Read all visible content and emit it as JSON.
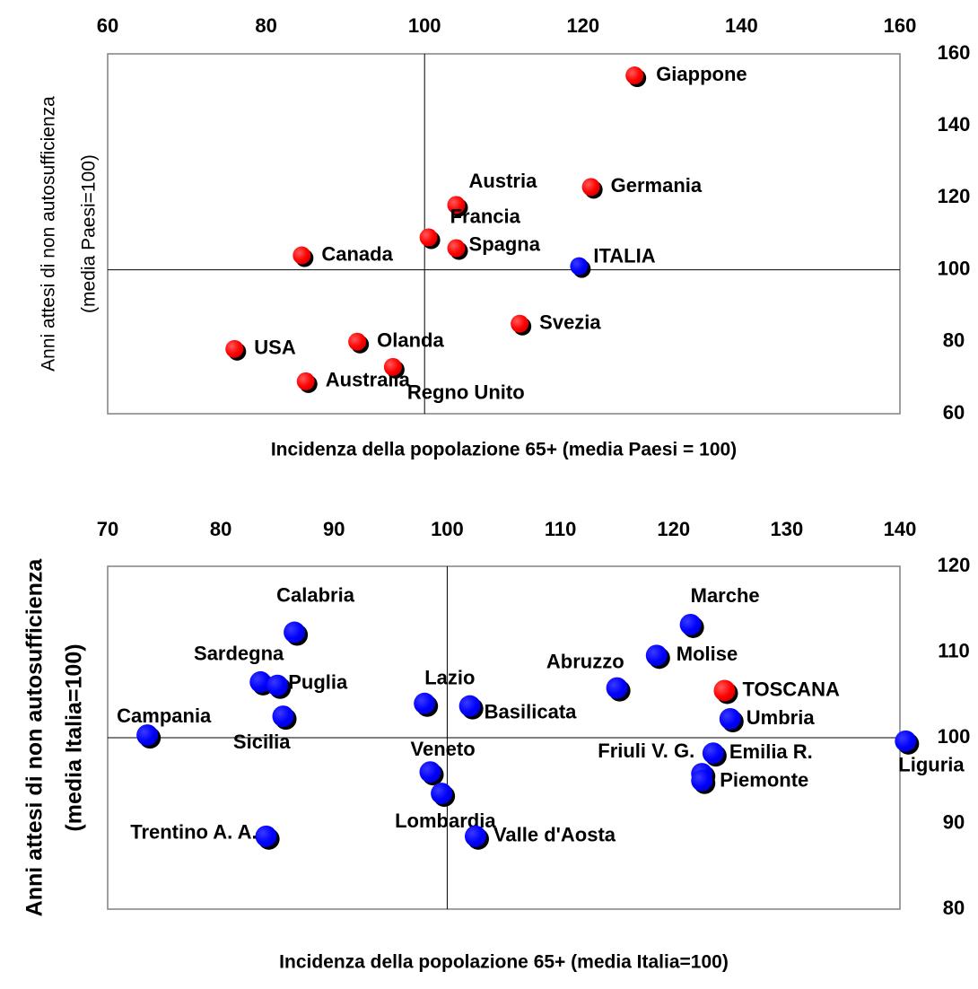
{
  "chart_data": [
    {
      "type": "scatter",
      "title": "",
      "xlabel": "Incidenza della popolazione 65+ (media Paesi = 100)",
      "ylabel_lines": [
        "Anni attesi di non autosufficienza",
        "(media Paesi=100)"
      ],
      "xlim": [
        60,
        160
      ],
      "ylim": [
        60,
        160
      ],
      "xticks": [
        60,
        80,
        100,
        120,
        140,
        160
      ],
      "yticks": [
        60,
        80,
        100,
        120,
        140,
        160
      ],
      "reference_lines": {
        "x": 100,
        "y": 100
      },
      "colors": {
        "highlight": "#0000ff",
        "default": "#ff0000"
      },
      "points": [
        {
          "label": "Giappone",
          "x": 126.5,
          "y": 154,
          "color": "red"
        },
        {
          "label": "Austria",
          "x": 104,
          "y": 118,
          "color": "red"
        },
        {
          "label": "Germania",
          "x": 121,
          "y": 123,
          "color": "red"
        },
        {
          "label": "Francia",
          "x": 100.5,
          "y": 109,
          "color": "red"
        },
        {
          "label": "Spagna",
          "x": 104,
          "y": 106,
          "color": "red"
        },
        {
          "label": "Canada",
          "x": 84.5,
          "y": 104,
          "color": "red"
        },
        {
          "label": "ITALIA",
          "x": 119.5,
          "y": 101,
          "color": "blue"
        },
        {
          "label": "Svezia",
          "x": 112,
          "y": 85,
          "color": "red"
        },
        {
          "label": "Olanda",
          "x": 91.5,
          "y": 80,
          "color": "red"
        },
        {
          "label": "USA",
          "x": 76,
          "y": 78,
          "color": "red"
        },
        {
          "label": "Australia",
          "x": 85,
          "y": 69,
          "color": "red"
        },
        {
          "label": "Regno Unito",
          "x": 96,
          "y": 73,
          "color": "red"
        }
      ]
    },
    {
      "type": "scatter",
      "title": "",
      "xlabel": "Incidenza della popolazione 65+ (media Italia=100)",
      "ylabel_lines": [
        "Anni attesi di non autosufficienza",
        "(media Italia=100)"
      ],
      "xlim": [
        70,
        140
      ],
      "ylim": [
        80,
        120
      ],
      "xticks": [
        70,
        80,
        90,
        100,
        110,
        120,
        130,
        140
      ],
      "yticks": [
        80,
        90,
        100,
        110,
        120
      ],
      "reference_lines": {
        "x": 100,
        "y": 100
      },
      "colors": {
        "highlight": "#ff0000",
        "default": "#0000ff"
      },
      "points": [
        {
          "label": "Calabria",
          "x": 86.5,
          "y": 112.3,
          "color": "blue"
        },
        {
          "label": "Marche",
          "x": 121.5,
          "y": 113.2,
          "color": "blue"
        },
        {
          "label": "Molise",
          "x": 118.5,
          "y": 109.6,
          "color": "blue"
        },
        {
          "label": "Sardegna",
          "x": 83.5,
          "y": 106.5,
          "color": "blue"
        },
        {
          "label": "Puglia",
          "x": 85,
          "y": 106.1,
          "color": "blue"
        },
        {
          "label": "Abruzzo",
          "x": 115,
          "y": 105.8,
          "color": "blue"
        },
        {
          "label": "TOSCANA",
          "x": 124.5,
          "y": 105.5,
          "color": "red"
        },
        {
          "label": "Lazio",
          "x": 98,
          "y": 104,
          "color": "blue"
        },
        {
          "label": "Basilicata",
          "x": 102,
          "y": 103.7,
          "color": "blue"
        },
        {
          "label": "Sicilia",
          "x": 85.5,
          "y": 102.5,
          "color": "blue"
        },
        {
          "label": "Umbria",
          "x": 125,
          "y": 102.2,
          "color": "blue"
        },
        {
          "label": "Campania",
          "x": 73.5,
          "y": 100.3,
          "color": "blue"
        },
        {
          "label": "Liguria",
          "x": 140.5,
          "y": 99.6,
          "color": "blue"
        },
        {
          "label": "Emilia R.",
          "x": 123.5,
          "y": 98.2,
          "color": "blue"
        },
        {
          "label": "Friuli V. G.",
          "x": 122.5,
          "y": 95.8,
          "color": "blue"
        },
        {
          "label": "Piemonte",
          "x": 122.5,
          "y": 95,
          "color": "blue"
        },
        {
          "label": "Veneto",
          "x": 98.5,
          "y": 96,
          "color": "blue"
        },
        {
          "label": "Lombardia",
          "x": 99.5,
          "y": 93.5,
          "color": "blue"
        },
        {
          "label": "Trentino A. A.",
          "x": 84,
          "y": 88.5,
          "color": "blue"
        },
        {
          "label": "Valle d'Aosta",
          "x": 102.5,
          "y": 88.5,
          "color": "blue"
        }
      ]
    }
  ]
}
